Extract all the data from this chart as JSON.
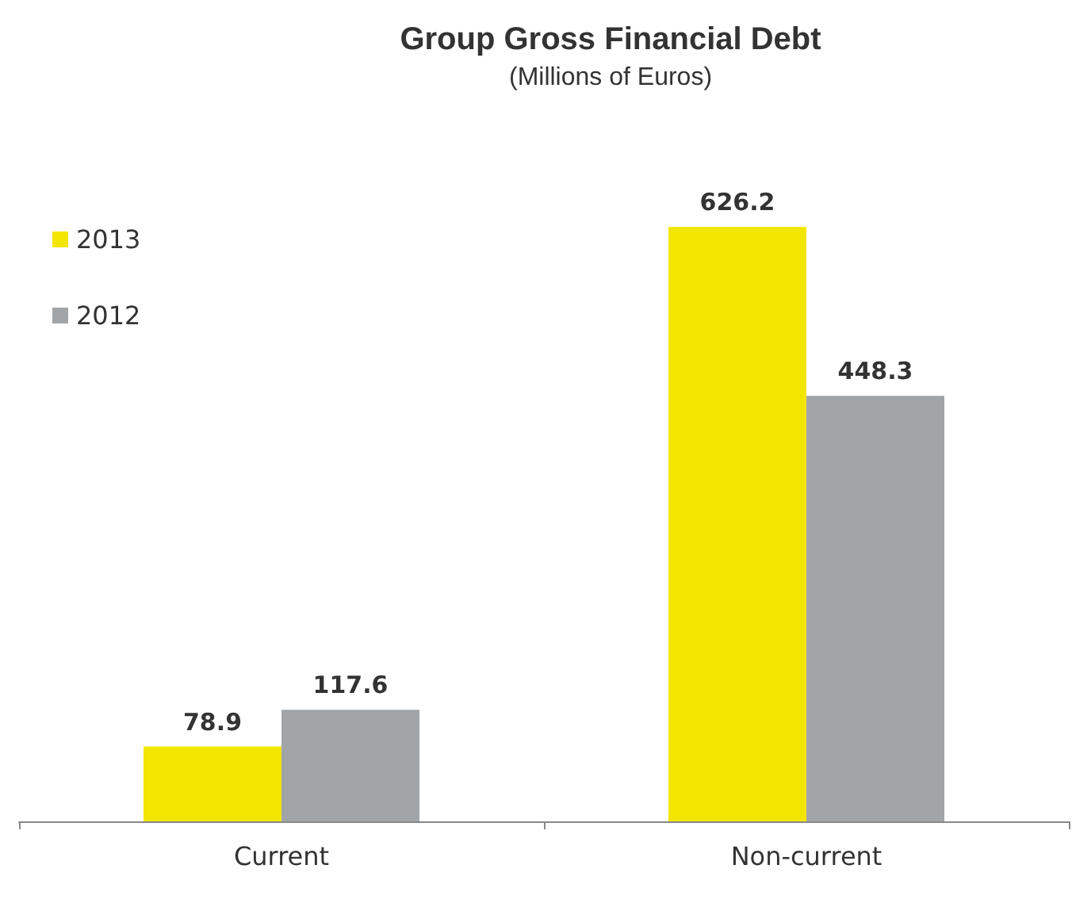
{
  "chart_data": {
    "type": "bar",
    "title": "Group Gross Financial Debt",
    "subtitle": "(Millions of Euros)",
    "categories": [
      "Current",
      "Non-current"
    ],
    "series": [
      {
        "name": "2013",
        "color": "#f2e500",
        "values": [
          78.9,
          626.2
        ]
      },
      {
        "name": "2012",
        "color": "#a2a5a8",
        "values": [
          117.6,
          448.3
        ]
      }
    ],
    "data_labels": true,
    "legend": "top left"
  }
}
